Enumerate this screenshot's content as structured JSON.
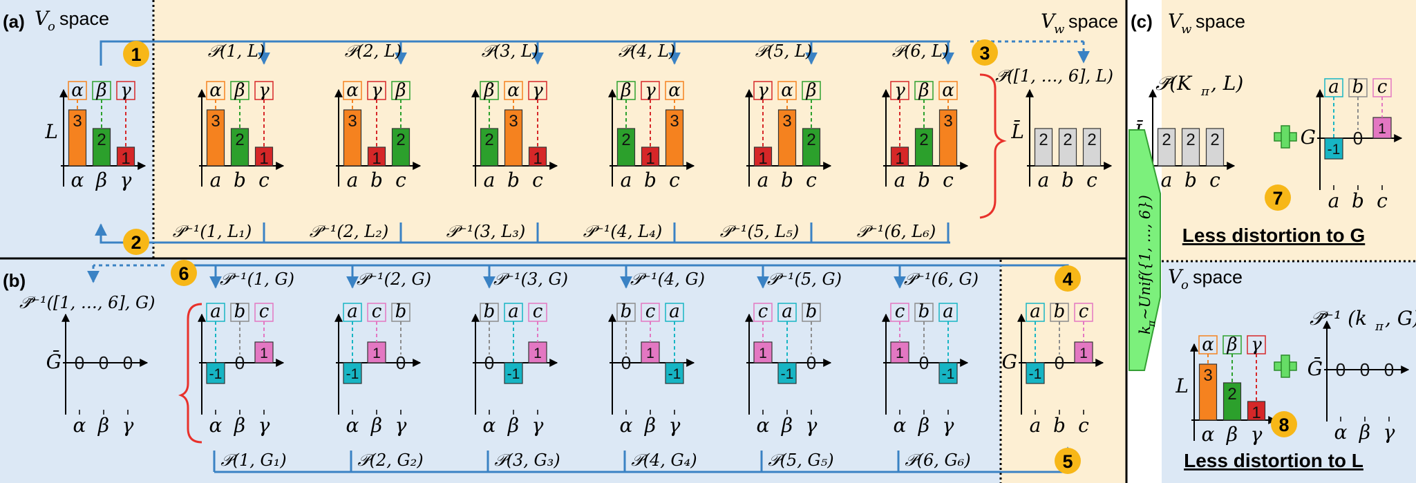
{
  "colors": {
    "vo_bg": "#dce8f5",
    "vw_bg": "#fdefd3",
    "orange": "#f5821f",
    "green": "#2ca02c",
    "red": "#d62728",
    "cyan": "#17b5c4",
    "magenta": "#e377c2",
    "gray": "#d6d6d6",
    "blue": "#3a82c4",
    "badge": "#f7b718",
    "arrow_green": "#7cf07c",
    "brace_red": "#e8312b"
  },
  "panel_a": {
    "label": "(a)",
    "vo_title": "space",
    "vw_title": "space",
    "sym_vo": "V",
    "sub_o": "o",
    "sym_vw": "V",
    "sub_w": "w",
    "y_axis": "L",
    "base_x_labels": [
      "α",
      "β",
      "γ"
    ],
    "base_box_labels": [
      "α",
      "β",
      "γ"
    ],
    "base_values": [
      "3",
      "2",
      "1"
    ],
    "x_labels": [
      "a",
      "b",
      "c"
    ],
    "top_perms": [
      "𝒫(1, L)",
      "𝒫(2, L)",
      "𝒫(3, L)",
      "𝒫(4, L)",
      "𝒫(5, L)",
      "𝒫(6, L)"
    ],
    "bottom_perms": [
      "𝒫⁻¹(1, L₁)",
      "𝒫⁻¹(2, L₂)",
      "𝒫⁻¹(3, L₃)",
      "𝒫⁻¹(4, L₄)",
      "𝒫⁻¹(5, L₅)",
      "𝒫⁻¹(6, L₆)"
    ],
    "avg_label": "𝒫̄([1, …, 6], L)",
    "avg_axis": "L̄",
    "avg_values": [
      "2",
      "2",
      "2"
    ],
    "perm_boxes": [
      [
        "α",
        "β",
        "γ"
      ],
      [
        "α",
        "γ",
        "β"
      ],
      [
        "β",
        "α",
        "γ"
      ],
      [
        "β",
        "γ",
        "α"
      ],
      [
        "γ",
        "α",
        "β"
      ],
      [
        "γ",
        "β",
        "α"
      ]
    ],
    "perm_values": [
      [
        "3",
        "2",
        "1"
      ],
      [
        "3",
        "1",
        "2"
      ],
      [
        "2",
        "3",
        "1"
      ],
      [
        "2",
        "1",
        "3"
      ],
      [
        "1",
        "3",
        "2"
      ],
      [
        "1",
        "2",
        "3"
      ]
    ]
  },
  "panel_b": {
    "label": "(b)",
    "y_axis": "G",
    "top_perms": [
      "𝒫⁻¹(1, G)",
      "𝒫⁻¹(2, G)",
      "𝒫⁻¹(3, G)",
      "𝒫⁻¹(4, G)",
      "𝒫⁻¹(5, G)",
      "𝒫⁻¹(6, G)"
    ],
    "bottom_perms": [
      "𝒫(1, G₁)",
      "𝒫(2, G₂)",
      "𝒫(3, G₃)",
      "𝒫(4, G₄)",
      "𝒫(5, G₅)",
      "𝒫(6, G₆)"
    ],
    "avg_label": "𝒫̄⁻¹([1, …, 6], G)",
    "avg_axis": "Ḡ",
    "avg_values": [
      "0",
      "0",
      "0"
    ],
    "x_labels": [
      "α",
      "β",
      "γ"
    ],
    "base_x_labels": [
      "a",
      "b",
      "c"
    ],
    "base_box_labels": [
      "a",
      "b",
      "c"
    ],
    "base_values": [
      "-1",
      "0",
      "1"
    ],
    "perm_boxes": [
      [
        "a",
        "b",
        "c"
      ],
      [
        "a",
        "c",
        "b"
      ],
      [
        "b",
        "a",
        "c"
      ],
      [
        "b",
        "c",
        "a"
      ],
      [
        "c",
        "a",
        "b"
      ],
      [
        "c",
        "b",
        "a"
      ]
    ],
    "perm_values": [
      [
        "-1",
        "0",
        "1"
      ],
      [
        "-1",
        "1",
        "0"
      ],
      [
        "0",
        "-1",
        "1"
      ],
      [
        "0",
        "1",
        "-1"
      ],
      [
        "1",
        "-1",
        "0"
      ],
      [
        "1",
        "0",
        "-1"
      ]
    ]
  },
  "panel_c": {
    "label": "(c)",
    "top_title": "space",
    "bottom_title": "space",
    "pbar_label": "𝒫̄(K",
    "pbar_sub": "π",
    "pbar_tail": ", L)",
    "pinv_label": "𝒫̄⁻¹ (k",
    "pinv_sub": "π",
    "pinv_tail": ", G)",
    "lbar_axis": "L̄",
    "lbar_values": [
      "2",
      "2",
      "2"
    ],
    "lbar_x": [
      "a",
      "b",
      "c"
    ],
    "g_axis": "G",
    "g_boxes": [
      "a",
      "b",
      "c"
    ],
    "g_values": [
      "-1",
      "0",
      "1"
    ],
    "g_x": [
      "a",
      "b",
      "c"
    ],
    "l_axis": "L",
    "l_boxes": [
      "α",
      "β",
      "γ"
    ],
    "l_values": [
      "3",
      "2",
      "1"
    ],
    "l_x": [
      "α",
      "β",
      "γ"
    ],
    "gbar_axis": "Ḡ",
    "gbar_values": [
      "0",
      "0",
      "0"
    ],
    "gbar_x": [
      "α",
      "β",
      "γ"
    ],
    "caption_top": "Less distortion to G",
    "caption_bottom": "Less distortion to L",
    "arrow_text": "k",
    "arrow_sub": "π",
    "arrow_tail": "~Unif({1, …, 6})"
  },
  "badges": [
    "1",
    "2",
    "3",
    "4",
    "5",
    "6",
    "7",
    "8"
  ]
}
